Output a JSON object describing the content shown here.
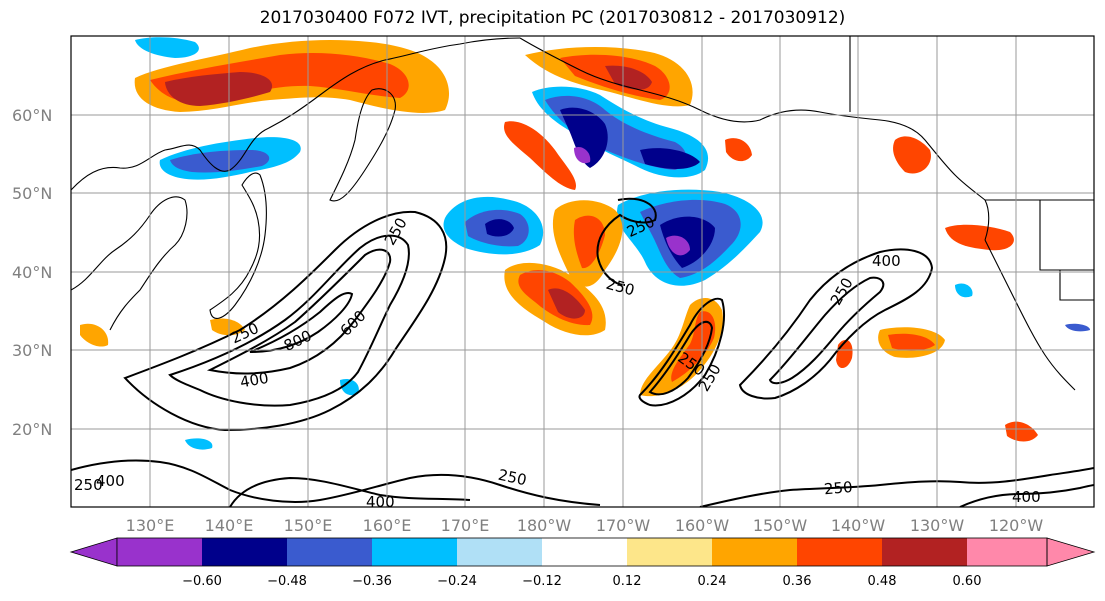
{
  "title": "2017030400 F072 IVT, precipitation PC (2017030812 - 2017030912)",
  "map": {
    "lon_ticks": [
      "130°E",
      "140°E",
      "150°E",
      "160°E",
      "170°E",
      "180°W",
      "170°W",
      "160°W",
      "150°W",
      "140°W",
      "130°W",
      "120°W"
    ],
    "lat_ticks": [
      "60°N",
      "50°N",
      "40°N",
      "30°N",
      "20°N"
    ],
    "gridlines": true,
    "contour_labels": [
      "250",
      "250",
      "400",
      "250",
      "250",
      "800",
      "600",
      "400",
      "250",
      "400",
      "250",
      "250",
      "250",
      "250",
      "400",
      "250",
      "400"
    ]
  },
  "colorbar": {
    "ticks": [
      "−0.60",
      "−0.48",
      "−0.36",
      "−0.24",
      "−0.12",
      "0.12",
      "0.24",
      "0.36",
      "0.48",
      "0.60"
    ],
    "colors": [
      "#9932cc",
      "#00008b",
      "#3a5bcf",
      "#00bfff",
      "#b0e0f6",
      "#ffffff",
      "#fde68a",
      "#ffa500",
      "#ff4500",
      "#b22222",
      "#ff88aa"
    ],
    "extend": "both"
  }
}
